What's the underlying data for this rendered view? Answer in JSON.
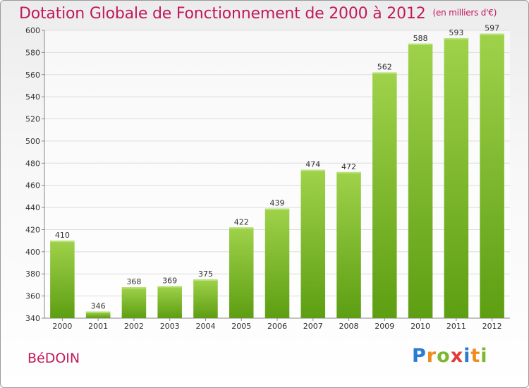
{
  "header": {
    "title": "Dotation Globale de Fonctionnement de 2000 à 2012",
    "unit": "(en milliers d'€)"
  },
  "footer": {
    "commune": "BéDOIN",
    "logo_letters": [
      "P",
      "r",
      "o",
      "x",
      "i",
      "t",
      "i"
    ],
    "logo_colors": [
      "#2b7bd0",
      "#f08c1e",
      "#7cb82f",
      "#e23b3b",
      "#2b7bd0",
      "#f08c1e",
      "#7cb82f"
    ]
  },
  "chart_data": {
    "type": "bar",
    "title": "Dotation Globale de Fonctionnement de 2000 à 2012",
    "subtitle": "(en milliers d'€)",
    "categories": [
      "2000",
      "2001",
      "2002",
      "2003",
      "2004",
      "2005",
      "2006",
      "2007",
      "2008",
      "2009",
      "2010",
      "2011",
      "2012"
    ],
    "values": [
      410,
      346,
      368,
      369,
      375,
      422,
      439,
      474,
      472,
      562,
      588,
      593,
      597
    ],
    "ylim": [
      340,
      600
    ],
    "yticks": [
      340,
      360,
      380,
      400,
      420,
      440,
      460,
      480,
      500,
      520,
      540,
      560,
      580,
      600
    ],
    "grid": true,
    "bar_color": "#7fbf2a"
  }
}
